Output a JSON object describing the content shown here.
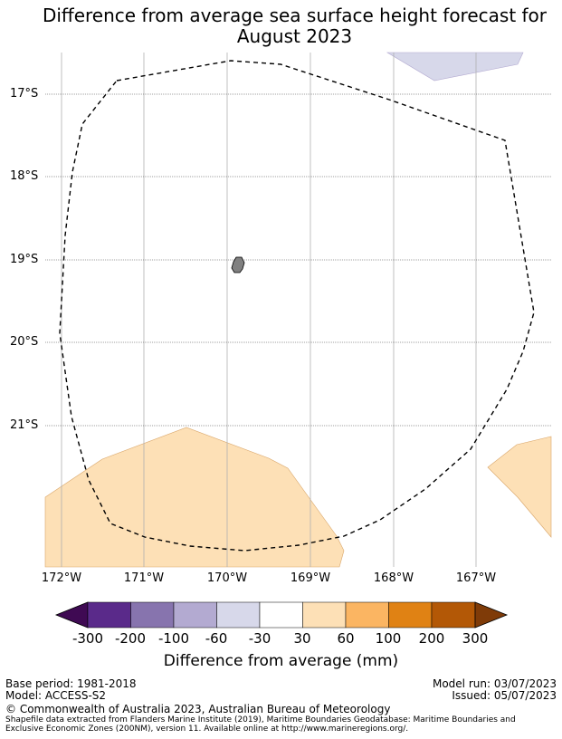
{
  "title_line1": "Difference from average sea surface height forecast for",
  "title_line2": "August 2023",
  "lat_labels": [
    "17°S",
    "18°S",
    "19°S",
    "20°S",
    "21°S"
  ],
  "lon_labels": [
    "172°W",
    "171°W",
    "170°W",
    "169°W",
    "168°W",
    "167°W"
  ],
  "colorbar": {
    "ticks": [
      "-300",
      "-200",
      "-100",
      "-60",
      "-30",
      "30",
      "60",
      "100",
      "200",
      "300"
    ],
    "colors": [
      "#3f0a53",
      "#5a2a8a",
      "#8774ae",
      "#b3aad1",
      "#d7d8ea",
      "#ffffff",
      "#fde0b6",
      "#fbb562",
      "#e08214",
      "#b35806",
      "#7f3b08"
    ],
    "label": "Difference from average (mm)"
  },
  "footer": {
    "base_period": "Base period: 1981-2018",
    "model": "Model: ACCESS-S2",
    "model_run": "Model run: 03/07/2023",
    "issued": "Issued: 05/07/2023",
    "copyright": "© Commonwealth of Australia 2023, Australian Bureau of Meteorology",
    "shapefile_line1": "Shapefile data extracted from Flanders Marine Institute (2019), Maritime Boundaries Geodatabase: Maritime Boundaries and",
    "shapefile_line2": "Exclusive Economic Zones (200NM), version 11. Available online at http://www.marineregions.org/."
  }
}
